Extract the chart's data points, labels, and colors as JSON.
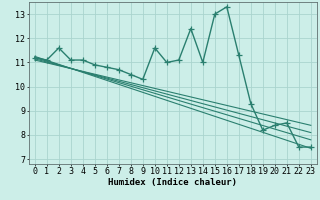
{
  "x": [
    0,
    1,
    2,
    3,
    4,
    5,
    6,
    7,
    8,
    9,
    10,
    11,
    12,
    13,
    14,
    15,
    16,
    17,
    18,
    19,
    20,
    21,
    22,
    23
  ],
  "y_main": [
    11.2,
    11.1,
    11.6,
    11.1,
    11.1,
    10.9,
    10.8,
    10.7,
    10.5,
    10.3,
    11.6,
    11.0,
    11.1,
    12.4,
    11.0,
    13.0,
    13.3,
    11.3,
    9.3,
    8.2,
    8.4,
    8.5,
    7.5,
    7.5
  ],
  "trend_lines": [
    {
      "x0": 0,
      "y0": 11.25,
      "x1": 23,
      "y1": 7.45
    },
    {
      "x0": 0,
      "y0": 11.2,
      "x1": 23,
      "y1": 7.8
    },
    {
      "x0": 0,
      "y0": 11.15,
      "x1": 23,
      "y1": 8.1
    },
    {
      "x0": 0,
      "y0": 11.1,
      "x1": 23,
      "y1": 8.4
    }
  ],
  "line_color": "#2a7f6f",
  "bg_color": "#cceee8",
  "grid_color": "#aad4ce",
  "xlabel": "Humidex (Indice chaleur)",
  "xlim": [
    -0.5,
    23.5
  ],
  "ylim": [
    6.8,
    13.5
  ],
  "yticks": [
    7,
    8,
    9,
    10,
    11,
    12,
    13
  ],
  "xticks": [
    0,
    1,
    2,
    3,
    4,
    5,
    6,
    7,
    8,
    9,
    10,
    11,
    12,
    13,
    14,
    15,
    16,
    17,
    18,
    19,
    20,
    21,
    22,
    23
  ],
  "marker_size": 4,
  "line_width": 1.0,
  "label_fontsize": 6.5,
  "tick_fontsize": 6.0
}
